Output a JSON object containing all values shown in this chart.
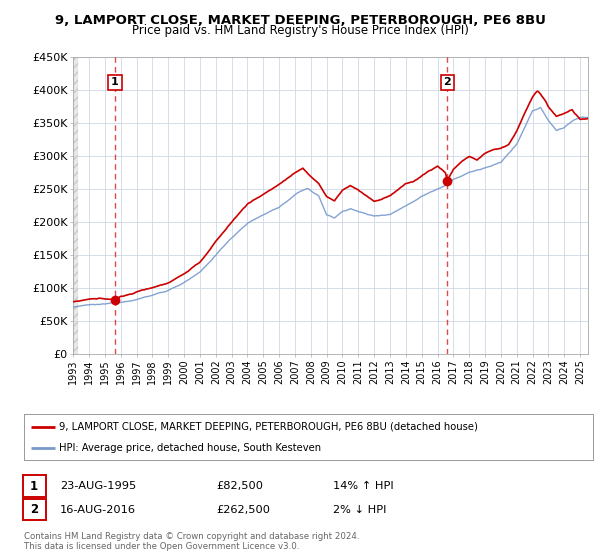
{
  "title_line1": "9, LAMPORT CLOSE, MARKET DEEPING, PETERBOROUGH, PE6 8BU",
  "title_line2": "Price paid vs. HM Land Registry's House Price Index (HPI)",
  "background_color": "#ffffff",
  "plot_bg_color": "#ffffff",
  "hpi_color": "#7799cc",
  "price_color": "#cc0000",
  "sale1_date_num": 1995.64,
  "sale1_price": 82500,
  "sale2_date_num": 2016.62,
  "sale2_price": 262500,
  "legend_line1": "9, LAMPORT CLOSE, MARKET DEEPING, PETERBOROUGH, PE6 8BU (detached house)",
  "legend_line2": "HPI: Average price, detached house, South Kesteven",
  "table_row1": [
    "1",
    "23-AUG-1995",
    "£82,500",
    "14% ↑ HPI"
  ],
  "table_row2": [
    "2",
    "16-AUG-2016",
    "£262,500",
    "2% ↓ HPI"
  ],
  "footer": "Contains HM Land Registry data © Crown copyright and database right 2024.\nThis data is licensed under the Open Government Licence v3.0.",
  "ylim": [
    0,
    450000
  ],
  "yticks": [
    0,
    50000,
    100000,
    150000,
    200000,
    250000,
    300000,
    350000,
    400000,
    450000
  ],
  "ytick_labels": [
    "£0",
    "£50K",
    "£100K",
    "£150K",
    "£200K",
    "£250K",
    "£300K",
    "£350K",
    "£400K",
    "£450K"
  ],
  "xlim_start": 1993.0,
  "xlim_end": 2025.5,
  "hpi_anchors": [
    [
      1993.0,
      70000
    ],
    [
      1994.0,
      72000
    ],
    [
      1995.0,
      72500
    ],
    [
      1996.0,
      76000
    ],
    [
      1997.0,
      82000
    ],
    [
      1998.0,
      88000
    ],
    [
      1999.0,
      96000
    ],
    [
      2000.0,
      108000
    ],
    [
      2001.0,
      122000
    ],
    [
      2002.0,
      148000
    ],
    [
      2003.0,
      175000
    ],
    [
      2004.0,
      198000
    ],
    [
      2005.0,
      210000
    ],
    [
      2006.0,
      222000
    ],
    [
      2007.0,
      240000
    ],
    [
      2007.8,
      250000
    ],
    [
      2008.5,
      238000
    ],
    [
      2009.0,
      210000
    ],
    [
      2009.5,
      205000
    ],
    [
      2010.0,
      215000
    ],
    [
      2010.5,
      220000
    ],
    [
      2011.0,
      215000
    ],
    [
      2012.0,
      208000
    ],
    [
      2013.0,
      212000
    ],
    [
      2014.0,
      225000
    ],
    [
      2015.0,
      240000
    ],
    [
      2016.0,
      252000
    ],
    [
      2016.5,
      258000
    ],
    [
      2017.0,
      268000
    ],
    [
      2018.0,
      278000
    ],
    [
      2019.0,
      285000
    ],
    [
      2020.0,
      292000
    ],
    [
      2021.0,
      320000
    ],
    [
      2021.5,
      345000
    ],
    [
      2022.0,
      370000
    ],
    [
      2022.5,
      375000
    ],
    [
      2023.0,
      355000
    ],
    [
      2023.5,
      340000
    ],
    [
      2024.0,
      345000
    ],
    [
      2024.5,
      355000
    ],
    [
      2025.0,
      360000
    ]
  ],
  "red_anchors": [
    [
      1993.0,
      79000
    ],
    [
      1994.0,
      82000
    ],
    [
      1995.0,
      82000
    ],
    [
      1995.64,
      82500
    ],
    [
      1996.0,
      86000
    ],
    [
      1997.0,
      93000
    ],
    [
      1998.0,
      100000
    ],
    [
      1999.0,
      108000
    ],
    [
      2000.0,
      122000
    ],
    [
      2001.0,
      140000
    ],
    [
      2002.0,
      170000
    ],
    [
      2003.0,
      200000
    ],
    [
      2004.0,
      228000
    ],
    [
      2005.0,
      242000
    ],
    [
      2006.0,
      258000
    ],
    [
      2007.0,
      275000
    ],
    [
      2007.5,
      280000
    ],
    [
      2008.0,
      268000
    ],
    [
      2008.5,
      258000
    ],
    [
      2009.0,
      238000
    ],
    [
      2009.5,
      232000
    ],
    [
      2010.0,
      248000
    ],
    [
      2010.5,
      255000
    ],
    [
      2011.0,
      248000
    ],
    [
      2011.5,
      240000
    ],
    [
      2012.0,
      232000
    ],
    [
      2012.5,
      235000
    ],
    [
      2013.0,
      240000
    ],
    [
      2013.5,
      248000
    ],
    [
      2014.0,
      258000
    ],
    [
      2014.5,
      262000
    ],
    [
      2015.0,
      270000
    ],
    [
      2015.5,
      278000
    ],
    [
      2016.0,
      285000
    ],
    [
      2016.5,
      275000
    ],
    [
      2016.62,
      262500
    ],
    [
      2017.0,
      280000
    ],
    [
      2017.5,
      292000
    ],
    [
      2018.0,
      300000
    ],
    [
      2018.5,
      295000
    ],
    [
      2019.0,
      305000
    ],
    [
      2019.5,
      310000
    ],
    [
      2020.0,
      312000
    ],
    [
      2020.5,
      318000
    ],
    [
      2021.0,
      338000
    ],
    [
      2021.5,
      365000
    ],
    [
      2022.0,
      390000
    ],
    [
      2022.3,
      400000
    ],
    [
      2022.8,
      385000
    ],
    [
      2023.0,
      375000
    ],
    [
      2023.5,
      360000
    ],
    [
      2024.0,
      365000
    ],
    [
      2024.5,
      370000
    ],
    [
      2025.0,
      355000
    ]
  ]
}
